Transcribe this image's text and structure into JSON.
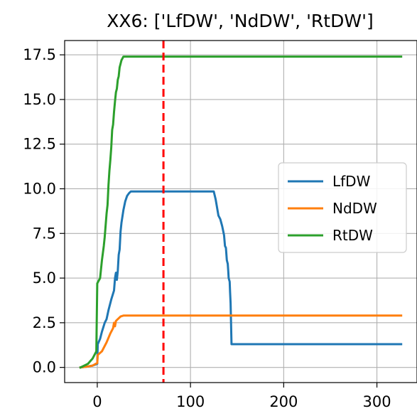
{
  "chart_data": {
    "type": "line",
    "title": "XX6: ['LfDW', 'NdDW', 'RtDW']",
    "xlabel": "",
    "ylabel": "",
    "xlim": [
      -35,
      343
    ],
    "ylim": [
      -0.85,
      18.3
    ],
    "xticks": [
      0,
      100,
      200,
      300
    ],
    "xtick_labels": [
      "0",
      "100",
      "200",
      "300"
    ],
    "yticks": [
      0.0,
      2.5,
      5.0,
      7.5,
      10.0,
      12.5,
      15.0,
      17.5
    ],
    "ytick_labels": [
      "0.0",
      "2.5",
      "5.0",
      "7.5",
      "10.0",
      "12.5",
      "15.0",
      "17.5"
    ],
    "grid": true,
    "legend_position": "center-right",
    "vline": {
      "x": 71,
      "color": "#ff0000",
      "style": "dashed"
    },
    "series": [
      {
        "name": "LfDW",
        "color": "#1f77b4",
        "x": [
          -18,
          -10,
          -5,
          0,
          0.5,
          3,
          5,
          8,
          10,
          12,
          15,
          18,
          19,
          20,
          21,
          22,
          23,
          24,
          25,
          26,
          28,
          30,
          32,
          34,
          36,
          38,
          45,
          60,
          80,
          100,
          110,
          120,
          125,
          127,
          128,
          130,
          132,
          134,
          136,
          137,
          138,
          139,
          140,
          140.5,
          141,
          142,
          142.5,
          143,
          144,
          150,
          200,
          250,
          300,
          326
        ],
        "y": [
          0.0,
          0.05,
          0.1,
          0.2,
          1.3,
          1.6,
          2.0,
          2.5,
          2.7,
          3.2,
          3.8,
          4.3,
          5.0,
          5.3,
          4.9,
          5.4,
          6.3,
          6.6,
          7.6,
          8.1,
          8.8,
          9.3,
          9.6,
          9.75,
          9.85,
          9.85,
          9.85,
          9.85,
          9.85,
          9.85,
          9.85,
          9.85,
          9.85,
          9.4,
          9.1,
          8.5,
          8.3,
          7.9,
          7.4,
          6.8,
          6.7,
          6.0,
          5.8,
          5.4,
          5.0,
          4.8,
          4.2,
          3.6,
          1.3,
          1.3,
          1.3,
          1.3,
          1.3,
          1.3
        ],
        "y_extra": []
      },
      {
        "name": "NdDW",
        "color": "#ff7f0e",
        "x": [
          -18,
          -10,
          -5,
          0,
          0.5,
          5,
          10,
          14,
          17,
          18,
          19,
          20,
          22,
          25,
          28,
          30,
          40,
          60,
          100,
          200,
          300,
          326
        ],
        "y": [
          0.0,
          0.05,
          0.1,
          0.25,
          0.7,
          0.9,
          1.4,
          1.9,
          2.2,
          2.5,
          2.3,
          2.6,
          2.7,
          2.85,
          2.9,
          2.9,
          2.9,
          2.9,
          2.9,
          2.9,
          2.9,
          2.9
        ]
      },
      {
        "name": "RtDW",
        "color": "#2ca02c",
        "x": [
          -18,
          -10,
          -5,
          -2,
          -1,
          0,
          1,
          3,
          5,
          6,
          7,
          8,
          10,
          11,
          12,
          13,
          14,
          15,
          16,
          17,
          18,
          19,
          20,
          21,
          22,
          23,
          24,
          25,
          26,
          27,
          28,
          30,
          35,
          60,
          100,
          200,
          300,
          326
        ],
        "y": [
          0.0,
          0.2,
          0.5,
          0.8,
          0.9,
          4.7,
          4.8,
          5.0,
          6.0,
          6.4,
          6.8,
          7.3,
          8.6,
          9.1,
          10.2,
          11.0,
          11.6,
          12.3,
          13.3,
          13.6,
          14.3,
          14.9,
          15.4,
          15.6,
          16.1,
          16.3,
          16.8,
          17.0,
          17.2,
          17.3,
          17.4,
          17.4,
          17.4,
          17.4,
          17.4,
          17.4,
          17.4,
          17.4
        ]
      }
    ]
  }
}
